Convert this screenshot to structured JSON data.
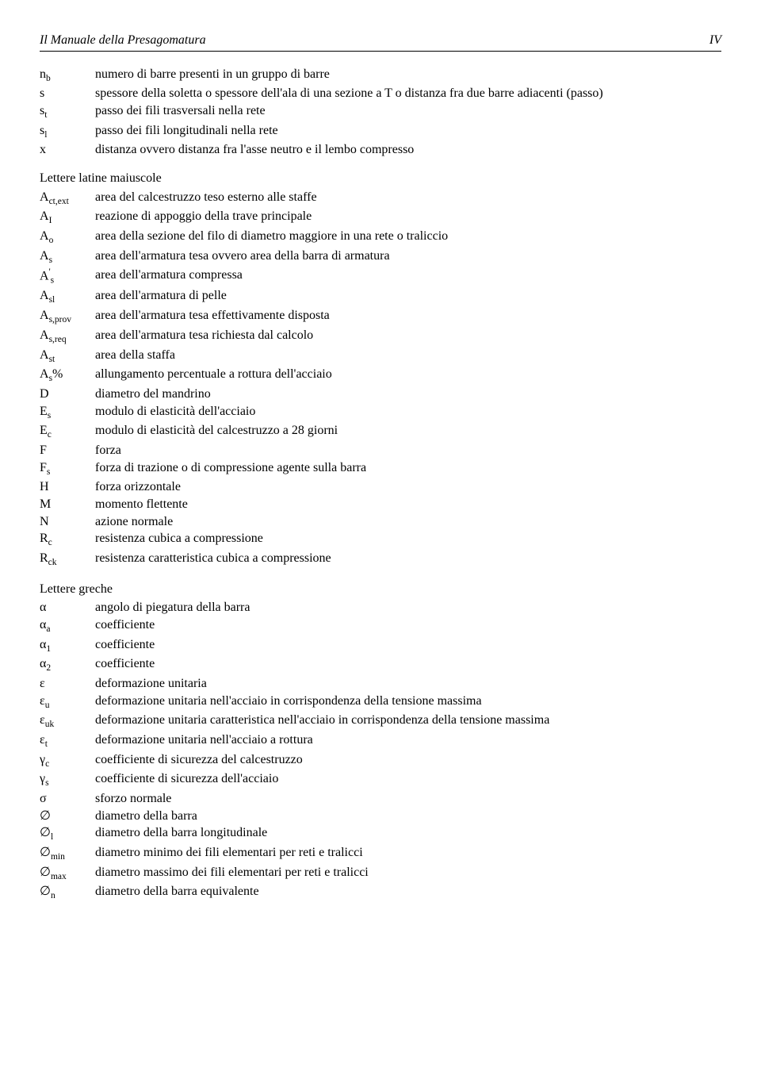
{
  "header": {
    "title": "Il Manuale della Presagomatura",
    "page": "IV"
  },
  "group1": [
    {
      "sym": "n<sub>b</sub>",
      "desc": "numero di barre presenti in un gruppo di barre"
    },
    {
      "sym": "s",
      "desc": "spessore della soletta o spessore dell'ala di una sezione a T o distanza fra due barre adiacenti (passo)"
    },
    {
      "sym": "s<sub>t</sub>",
      "desc": "passo dei fili trasversali nella rete"
    },
    {
      "sym": "s<sub>l</sub>",
      "desc": "passo dei fili longitudinali nella rete"
    },
    {
      "sym": "x",
      "desc": "distanza ovvero distanza fra l'asse neutro e il lembo compresso"
    }
  ],
  "section_upper_title": "Lettere latine maiuscole",
  "group2": [
    {
      "sym": "A<sub>ct,ext</sub>",
      "desc": "area del calcestruzzo teso esterno alle staffe"
    },
    {
      "sym": "A<sub>I</sub>",
      "desc": "reazione di appoggio della trave principale"
    },
    {
      "sym": "A<sub>o</sub>",
      "desc": "area della sezione del filo di diametro maggiore in una rete o traliccio"
    },
    {
      "sym": "A<sub>s</sub>",
      "desc": "area dell'armatura tesa ovvero area della barra di armatura"
    },
    {
      "sym": "A<sup>'</sup><sub>s</sub>",
      "desc": "area dell'armatura compressa"
    },
    {
      "sym": "A<sub>sl</sub>",
      "desc": "area dell'armatura di pelle"
    },
    {
      "sym": "A<sub>s,prov</sub>",
      "desc": "area dell'armatura tesa effettivamente disposta"
    },
    {
      "sym": "A<sub>s,req</sub>",
      "desc": "area dell'armatura tesa richiesta dal calcolo"
    },
    {
      "sym": "A<sub>st</sub>",
      "desc": "area della staffa"
    },
    {
      "sym": "A<sub>s</sub>%",
      "desc": "allungamento percentuale a rottura dell'acciaio"
    },
    {
      "sym": "D",
      "desc": "diametro del mandrino"
    },
    {
      "sym": "E<sub>s</sub>",
      "desc": "modulo di elasticità dell'acciaio"
    },
    {
      "sym": "E<sub>c</sub>",
      "desc": "modulo di elasticità del calcestruzzo a 28 giorni"
    },
    {
      "sym": "F",
      "desc": "forza"
    },
    {
      "sym": "F<sub>s</sub>",
      "desc": "forza di trazione o di compressione agente sulla barra"
    },
    {
      "sym": "H",
      "desc": "forza orizzontale"
    },
    {
      "sym": "M",
      "desc": "momento flettente"
    },
    {
      "sym": "N",
      "desc": "azione normale"
    },
    {
      "sym": "R<sub>c</sub>",
      "desc": "resistenza cubica a compressione"
    },
    {
      "sym": "R<sub>ck</sub>",
      "desc": "resistenza caratteristica cubica a compressione"
    }
  ],
  "section_greek_title": "Lettere greche",
  "group3": [
    {
      "sym": "α",
      "desc": "angolo di piegatura della barra"
    },
    {
      "sym": "α<sub>a</sub>",
      "desc": "coefficiente"
    },
    {
      "sym": "α<sub>1</sub>",
      "desc": "coefficiente"
    },
    {
      "sym": "α<sub>2</sub>",
      "desc": "coefficiente"
    },
    {
      "sym": "ε",
      "desc": "deformazione unitaria"
    },
    {
      "sym": "ε<sub>u</sub>",
      "desc": "deformazione unitaria nell'acciaio in corrispondenza della tensione massima"
    },
    {
      "sym": "ε<sub>uk</sub>",
      "desc": "deformazione unitaria caratteristica nell'acciaio in corrispondenza della tensione massima"
    },
    {
      "sym": "ε<sub>t</sub>",
      "desc": "deformazione unitaria nell'acciaio a rottura"
    },
    {
      "sym": "γ<sub>c</sub>",
      "desc": "coefficiente di sicurezza del calcestruzzo"
    },
    {
      "sym": "γ<sub>s</sub>",
      "desc": "coefficiente di sicurezza dell'acciaio"
    },
    {
      "sym": "σ",
      "desc": "sforzo normale"
    },
    {
      "sym": "∅",
      "desc": "diametro della barra"
    },
    {
      "sym": "∅<sub>l</sub>",
      "desc": "diametro della barra longitudinale"
    },
    {
      "sym": "∅<sub>min</sub>",
      "desc": "diametro minimo dei fili elementari per reti e tralicci"
    },
    {
      "sym": "∅<sub>max</sub>",
      "desc": "diametro massimo dei fili elementari per reti e tralicci"
    },
    {
      "sym": "∅<sub>n</sub>",
      "desc": "diametro della barra equivalente"
    }
  ]
}
